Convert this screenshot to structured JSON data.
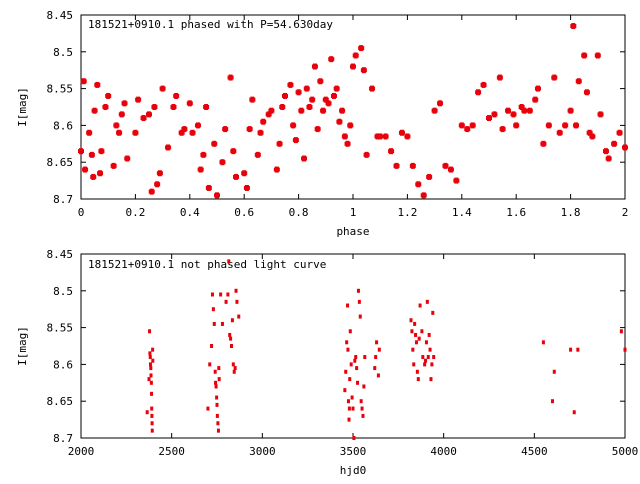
{
  "chart_data": [
    {
      "type": "scatter",
      "title": "181521+0910.1 phased with P=54.630day",
      "xlabel": "phase",
      "ylabel": "I[mag]",
      "xlim": [
        0,
        2
      ],
      "ylim": [
        8.45,
        8.7
      ],
      "y_inverted": true,
      "grid": false,
      "marker_color": "#e8000b",
      "marker": "cross",
      "xticks": [
        "0",
        "0.2",
        "0.4",
        "0.6",
        "0.8",
        "1",
        "1.2",
        "1.4",
        "1.6",
        "1.8",
        "2"
      ],
      "yticks": [
        "8.45",
        "8.5",
        "8.55",
        "8.6",
        "8.65",
        "8.7"
      ],
      "points": [
        [
          0.0,
          8.635
        ],
        [
          0.01,
          8.54
        ],
        [
          0.015,
          8.66
        ],
        [
          0.03,
          8.61
        ],
        [
          0.04,
          8.64
        ],
        [
          0.045,
          8.67
        ],
        [
          0.05,
          8.58
        ],
        [
          0.06,
          8.545
        ],
        [
          0.07,
          8.665
        ],
        [
          0.075,
          8.635
        ],
        [
          0.09,
          8.575
        ],
        [
          0.1,
          8.56
        ],
        [
          0.12,
          8.655
        ],
        [
          0.13,
          8.6
        ],
        [
          0.14,
          8.61
        ],
        [
          0.15,
          8.585
        ],
        [
          0.16,
          8.57
        ],
        [
          0.17,
          8.645
        ],
        [
          0.2,
          8.61
        ],
        [
          0.21,
          8.565
        ],
        [
          0.23,
          8.59
        ],
        [
          0.25,
          8.585
        ],
        [
          0.26,
          8.69
        ],
        [
          0.27,
          8.575
        ],
        [
          0.28,
          8.68
        ],
        [
          0.29,
          8.665
        ],
        [
          0.3,
          8.55
        ],
        [
          0.32,
          8.63
        ],
        [
          0.34,
          8.575
        ],
        [
          0.35,
          8.56
        ],
        [
          0.37,
          8.61
        ],
        [
          0.38,
          8.605
        ],
        [
          0.4,
          8.57
        ],
        [
          0.41,
          8.61
        ],
        [
          0.43,
          8.6
        ],
        [
          0.44,
          8.66
        ],
        [
          0.45,
          8.64
        ],
        [
          0.46,
          8.575
        ],
        [
          0.47,
          8.685
        ],
        [
          0.49,
          8.625
        ],
        [
          0.5,
          8.695
        ],
        [
          0.52,
          8.65
        ],
        [
          0.53,
          8.605
        ],
        [
          0.55,
          8.535
        ],
        [
          0.56,
          8.635
        ],
        [
          0.57,
          8.67
        ],
        [
          0.6,
          8.665
        ],
        [
          0.61,
          8.685
        ],
        [
          0.62,
          8.605
        ],
        [
          0.63,
          8.565
        ],
        [
          0.65,
          8.64
        ],
        [
          0.66,
          8.61
        ],
        [
          0.67,
          8.595
        ],
        [
          0.69,
          8.585
        ],
        [
          0.7,
          8.58
        ],
        [
          0.72,
          8.66
        ],
        [
          0.73,
          8.625
        ],
        [
          0.74,
          8.575
        ],
        [
          0.75,
          8.56
        ],
        [
          0.77,
          8.545
        ],
        [
          0.78,
          8.6
        ],
        [
          0.79,
          8.62
        ],
        [
          0.8,
          8.555
        ],
        [
          0.81,
          8.58
        ],
        [
          0.82,
          8.645
        ],
        [
          0.83,
          8.55
        ],
        [
          0.84,
          8.575
        ],
        [
          0.85,
          8.565
        ],
        [
          0.86,
          8.52
        ],
        [
          0.87,
          8.605
        ],
        [
          0.88,
          8.54
        ],
        [
          0.89,
          8.58
        ],
        [
          0.9,
          8.565
        ],
        [
          0.91,
          8.57
        ],
        [
          0.92,
          8.51
        ],
        [
          0.93,
          8.56
        ],
        [
          0.94,
          8.55
        ],
        [
          0.95,
          8.595
        ],
        [
          0.96,
          8.58
        ],
        [
          0.97,
          8.615
        ],
        [
          0.98,
          8.625
        ],
        [
          0.99,
          8.6
        ],
        [
          1.0,
          8.52
        ],
        [
          1.01,
          8.505
        ],
        [
          1.03,
          8.495
        ],
        [
          1.04,
          8.525
        ],
        [
          1.05,
          8.64
        ],
        [
          1.07,
          8.55
        ],
        [
          1.09,
          8.615
        ],
        [
          1.1,
          8.615
        ],
        [
          1.12,
          8.615
        ],
        [
          1.14,
          8.635
        ],
        [
          1.16,
          8.655
        ],
        [
          1.18,
          8.61
        ],
        [
          1.2,
          8.615
        ],
        [
          1.22,
          8.655
        ],
        [
          1.24,
          8.68
        ],
        [
          1.26,
          8.695
        ],
        [
          1.28,
          8.67
        ],
        [
          1.3,
          8.58
        ],
        [
          1.32,
          8.57
        ],
        [
          1.34,
          8.655
        ],
        [
          1.36,
          8.66
        ],
        [
          1.38,
          8.675
        ],
        [
          1.4,
          8.6
        ],
        [
          1.42,
          8.605
        ],
        [
          1.44,
          8.6
        ],
        [
          1.46,
          8.555
        ],
        [
          1.48,
          8.545
        ],
        [
          1.5,
          8.59
        ],
        [
          1.52,
          8.585
        ],
        [
          1.54,
          8.535
        ],
        [
          1.55,
          8.605
        ],
        [
          1.57,
          8.58
        ],
        [
          1.59,
          8.585
        ],
        [
          1.6,
          8.6
        ],
        [
          1.62,
          8.575
        ],
        [
          1.63,
          8.58
        ],
        [
          1.65,
          8.58
        ],
        [
          1.67,
          8.565
        ],
        [
          1.68,
          8.55
        ],
        [
          1.7,
          8.625
        ],
        [
          1.72,
          8.6
        ],
        [
          1.74,
          8.535
        ],
        [
          1.76,
          8.61
        ],
        [
          1.78,
          8.6
        ],
        [
          1.8,
          8.58
        ],
        [
          1.81,
          8.465
        ],
        [
          1.82,
          8.6
        ],
        [
          1.83,
          8.54
        ],
        [
          1.85,
          8.505
        ],
        [
          1.86,
          8.555
        ],
        [
          1.87,
          8.61
        ],
        [
          1.88,
          8.615
        ],
        [
          1.9,
          8.505
        ],
        [
          1.91,
          8.585
        ],
        [
          1.93,
          8.635
        ],
        [
          1.94,
          8.645
        ],
        [
          1.96,
          8.625
        ],
        [
          1.98,
          8.61
        ],
        [
          2.0,
          8.63
        ]
      ]
    },
    {
      "type": "scatter",
      "title": "181521+0910.1 not phased light curve",
      "xlabel": "hjd0",
      "ylabel": "I[mag]",
      "xlim": [
        2000,
        5000
      ],
      "ylim": [
        8.45,
        8.7
      ],
      "y_inverted": true,
      "grid": false,
      "marker_color": "#e8000b",
      "marker": "dot",
      "xticks": [
        "2000",
        "2500",
        "3000",
        "3500",
        "4000",
        "4500",
        "5000"
      ],
      "yticks": [
        "8.45",
        "8.5",
        "8.55",
        "8.6",
        "8.65",
        "8.7"
      ],
      "points": [
        [
          2365,
          8.665
        ],
        [
          2375,
          8.62
        ],
        [
          2378,
          8.555
        ],
        [
          2380,
          8.585
        ],
        [
          2382,
          8.59
        ],
        [
          2383,
          8.6
        ],
        [
          2385,
          8.605
        ],
        [
          2386,
          8.615
        ],
        [
          2388,
          8.625
        ],
        [
          2389,
          8.64
        ],
        [
          2390,
          8.66
        ],
        [
          2391,
          8.67
        ],
        [
          2392,
          8.68
        ],
        [
          2393,
          8.69
        ],
        [
          2395,
          8.58
        ],
        [
          2396,
          8.595
        ],
        [
          2700,
          8.66
        ],
        [
          2710,
          8.6
        ],
        [
          2720,
          8.575
        ],
        [
          2725,
          8.505
        ],
        [
          2730,
          8.525
        ],
        [
          2735,
          8.545
        ],
        [
          2740,
          8.61
        ],
        [
          2742,
          8.625
        ],
        [
          2745,
          8.63
        ],
        [
          2748,
          8.645
        ],
        [
          2750,
          8.655
        ],
        [
          2752,
          8.67
        ],
        [
          2755,
          8.68
        ],
        [
          2758,
          8.69
        ],
        [
          2760,
          8.605
        ],
        [
          2762,
          8.62
        ],
        [
          2770,
          8.505
        ],
        [
          2780,
          8.545
        ],
        [
          2800,
          8.515
        ],
        [
          2810,
          8.505
        ],
        [
          2815,
          8.46
        ],
        [
          2820,
          8.56
        ],
        [
          2825,
          8.565
        ],
        [
          2830,
          8.575
        ],
        [
          2835,
          8.54
        ],
        [
          2840,
          8.6
        ],
        [
          2845,
          8.61
        ],
        [
          2850,
          8.605
        ],
        [
          2855,
          8.5
        ],
        [
          2860,
          8.515
        ],
        [
          2870,
          8.535
        ],
        [
          3455,
          8.635
        ],
        [
          3460,
          8.61
        ],
        [
          3465,
          8.57
        ],
        [
          3470,
          8.52
        ],
        [
          3472,
          8.58
        ],
        [
          3475,
          8.65
        ],
        [
          3478,
          8.675
        ],
        [
          3480,
          8.66
        ],
        [
          3482,
          8.62
        ],
        [
          3485,
          8.555
        ],
        [
          3490,
          8.6
        ],
        [
          3495,
          8.645
        ],
        [
          3500,
          8.66
        ],
        [
          3505,
          8.7
        ],
        [
          3510,
          8.595
        ],
        [
          3515,
          8.59
        ],
        [
          3520,
          8.605
        ],
        [
          3525,
          8.625
        ],
        [
          3530,
          8.5
        ],
        [
          3535,
          8.515
        ],
        [
          3540,
          8.535
        ],
        [
          3545,
          8.65
        ],
        [
          3550,
          8.66
        ],
        [
          3555,
          8.67
        ],
        [
          3560,
          8.63
        ],
        [
          3565,
          8.59
        ],
        [
          3620,
          8.605
        ],
        [
          3625,
          8.59
        ],
        [
          3630,
          8.57
        ],
        [
          3640,
          8.615
        ],
        [
          3645,
          8.58
        ],
        [
          3820,
          8.54
        ],
        [
          3825,
          8.555
        ],
        [
          3830,
          8.58
        ],
        [
          3835,
          8.6
        ],
        [
          3840,
          8.545
        ],
        [
          3845,
          8.56
        ],
        [
          3850,
          8.57
        ],
        [
          3855,
          8.61
        ],
        [
          3860,
          8.62
        ],
        [
          3865,
          8.565
        ],
        [
          3870,
          8.52
        ],
        [
          3880,
          8.555
        ],
        [
          3885,
          8.59
        ],
        [
          3895,
          8.6
        ],
        [
          3900,
          8.595
        ],
        [
          3905,
          8.57
        ],
        [
          3910,
          8.515
        ],
        [
          3915,
          8.59
        ],
        [
          3920,
          8.56
        ],
        [
          3925,
          8.58
        ],
        [
          3930,
          8.62
        ],
        [
          3935,
          8.6
        ],
        [
          3940,
          8.53
        ],
        [
          3945,
          8.59
        ],
        [
          4550,
          8.57
        ],
        [
          4600,
          8.65
        ],
        [
          4610,
          8.61
        ],
        [
          4700,
          8.58
        ],
        [
          4720,
          8.665
        ],
        [
          4740,
          8.58
        ],
        [
          4980,
          8.555
        ],
        [
          5000,
          8.58
        ]
      ]
    }
  ]
}
